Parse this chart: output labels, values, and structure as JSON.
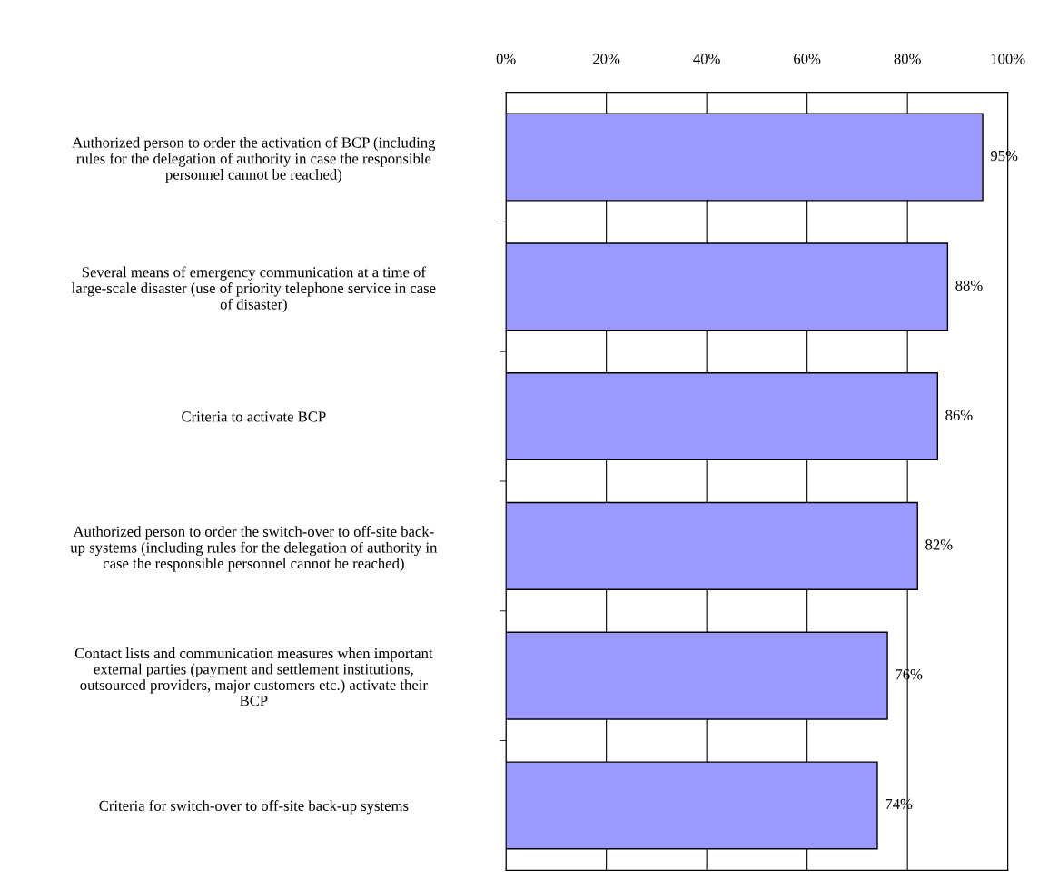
{
  "chart_data": {
    "type": "bar",
    "orientation": "horizontal",
    "categories": [
      "Authorized person to order the activation of BCP (including\nrules for the delegation of authority in case the responsible\npersonnel cannot be reached)",
      "Several means of emergency communication at a time of\nlarge-scale disaster (use of priority telephone service in case\nof disaster)",
      "Criteria to activate BCP",
      "Authorized person to order the switch-over to off-site back-\nup systems (including rules for the delegation of authority in\ncase the responsible personnel cannot be reached)",
      "Contact lists and communication measures when important\nexternal parties (payment and settlement institutions,\noutsourced providers, major customers etc.) activate their\nBCP",
      "Criteria for switch-over to off-site back-up systems"
    ],
    "values": [
      95,
      88,
      86,
      82,
      76,
      74
    ],
    "value_labels": [
      "95%",
      "88%",
      "86%",
      "82%",
      "76%",
      "74%"
    ],
    "color": "#9999ff",
    "xlim": [
      0,
      100
    ],
    "xticks": [
      {
        "value": 0,
        "label": "0%"
      },
      {
        "value": 20,
        "label": "20%"
      },
      {
        "value": 40,
        "label": "40%"
      },
      {
        "value": 60,
        "label": "60%"
      },
      {
        "value": 80,
        "label": "80%"
      },
      {
        "value": 100,
        "label": "100%"
      }
    ],
    "grid": "x",
    "legend": false
  }
}
